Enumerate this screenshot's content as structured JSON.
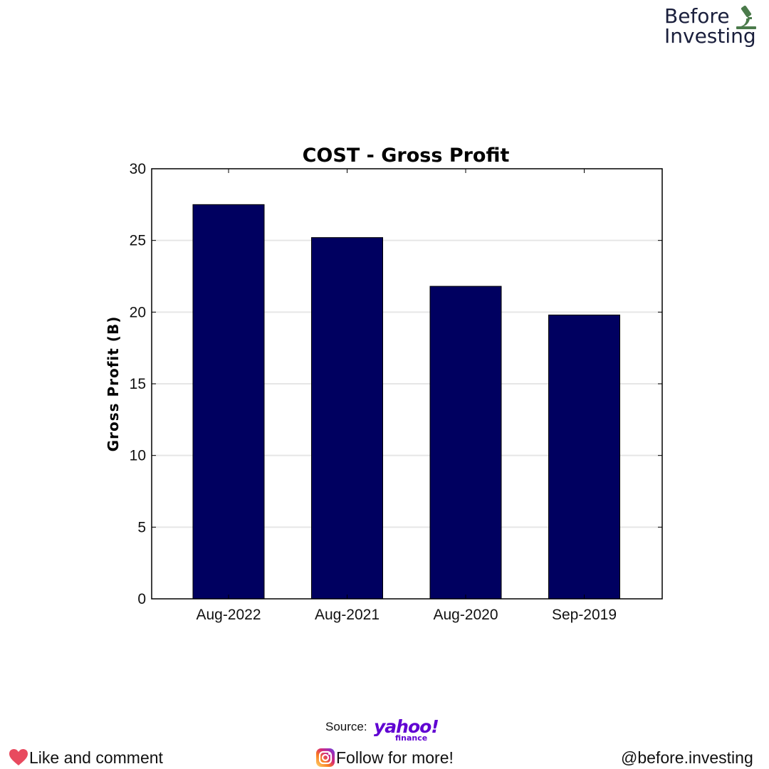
{
  "brand": {
    "line1": "Before",
    "line2": "Investing",
    "icon": "microscope-icon",
    "color": "#1a1f3c",
    "icon_color": "#4a7a4a"
  },
  "chart_data": {
    "type": "bar",
    "title": "COST - Gross Profit",
    "ylabel": "Gross Profit (B)",
    "xlabel": "",
    "categories": [
      "Aug-2022",
      "Aug-2021",
      "Aug-2020",
      "Sep-2019"
    ],
    "values": [
      27.5,
      25.2,
      21.8,
      19.8
    ],
    "ylim": [
      0,
      30
    ],
    "yticks": [
      0,
      5,
      10,
      15,
      20,
      25,
      30
    ],
    "grid": "horizontal",
    "bar_color": "#000060"
  },
  "source": {
    "label": "Source:",
    "logo_word": "yahoo!",
    "logo_sub": "finance",
    "logo_color": "#6001d2"
  },
  "footer": {
    "like_text": "Like and comment",
    "like_icon": "heart-icon",
    "follow_text": "Follow for more!",
    "follow_icon": "instagram-icon",
    "handle": "@before.investing"
  }
}
